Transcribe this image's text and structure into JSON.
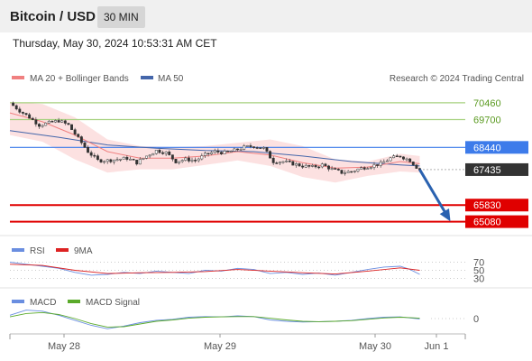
{
  "header": {
    "title": "Bitcoin / USD",
    "timeframe": "30 MIN",
    "datetime": "Thursday, May 30, 2024 10:53:31 AM CET"
  },
  "legend": {
    "ma20": "MA 20 + Bollinger Bands",
    "ma50": "MA 50",
    "source": "Research © 2024 Trading Central",
    "rsi": "RSI",
    "rsi_ma": "9MA",
    "macd": "MACD",
    "macd_signal": "MACD Signal"
  },
  "colors": {
    "ma20": "#f08080",
    "ma50": "#4466aa",
    "bollinger": "#fbd9d9",
    "resistance": "#a6d17f",
    "pivot": "#3d7bea",
    "support": "#e00000",
    "current": "#333333",
    "arrow": "#2a62b0",
    "rsi": "#6a8ee0",
    "rsi_ma": "#dd2222",
    "macd": "#6a8ee0",
    "macd_signal": "#5aaa2a"
  },
  "chart_data": [
    {
      "type": "candlestick",
      "title": "Bitcoin / USD",
      "ylim": [
        64900,
        70700
      ],
      "x_ticks": [
        "May 28",
        "May 29",
        "May 30",
        "Jun 1"
      ],
      "levels": [
        {
          "value": 70460,
          "label": "70460",
          "kind": "resistance"
        },
        {
          "value": 69700,
          "label": "69700",
          "kind": "resistance"
        },
        {
          "value": 68440,
          "label": "68440",
          "kind": "pivot"
        },
        {
          "value": 67435,
          "label": "67435",
          "kind": "current"
        },
        {
          "value": 65830,
          "label": "65830",
          "kind": "support"
        },
        {
          "value": 65080,
          "label": "65080",
          "kind": "support"
        }
      ],
      "close_path": [
        [
          0,
          70450
        ],
        [
          3,
          70100
        ],
        [
          6,
          69800
        ],
        [
          9,
          69450
        ],
        [
          12,
          69550
        ],
        [
          15,
          69650
        ],
        [
          18,
          69450
        ],
        [
          21,
          68850
        ],
        [
          24,
          68250
        ],
        [
          27,
          67850
        ],
        [
          30,
          67850
        ],
        [
          33,
          67900
        ],
        [
          36,
          67950
        ],
        [
          39,
          67750
        ],
        [
          42,
          68050
        ],
        [
          45,
          68300
        ],
        [
          48,
          68200
        ],
        [
          51,
          67800
        ],
        [
          54,
          67900
        ],
        [
          57,
          67850
        ],
        [
          60,
          68100
        ],
        [
          63,
          68250
        ],
        [
          66,
          68200
        ],
        [
          69,
          68300
        ],
        [
          72,
          68450
        ],
        [
          75,
          68500
        ],
        [
          78,
          68400
        ],
        [
          81,
          67800
        ],
        [
          84,
          67800
        ],
        [
          87,
          67700
        ],
        [
          90,
          67600
        ],
        [
          93,
          67550
        ],
        [
          96,
          67650
        ],
        [
          99,
          67450
        ],
        [
          102,
          67300
        ],
        [
          105,
          67350
        ],
        [
          108,
          67500
        ],
        [
          111,
          67600
        ],
        [
          114,
          67700
        ],
        [
          117,
          67950
        ],
        [
          120,
          68050
        ],
        [
          123,
          67850
        ],
        [
          125,
          67550
        ],
        [
          126,
          67435
        ]
      ],
      "ma20": [
        [
          0,
          70000
        ],
        [
          10,
          69600
        ],
        [
          20,
          69000
        ],
        [
          30,
          68250
        ],
        [
          40,
          67950
        ],
        [
          50,
          67950
        ],
        [
          60,
          68050
        ],
        [
          70,
          68250
        ],
        [
          80,
          68100
        ],
        [
          90,
          67750
        ],
        [
          100,
          67500
        ],
        [
          110,
          67550
        ],
        [
          120,
          67800
        ],
        [
          126,
          67700
        ]
      ],
      "ma50": [
        [
          0,
          69200
        ],
        [
          15,
          68900
        ],
        [
          30,
          68550
        ],
        [
          45,
          68400
        ],
        [
          60,
          68300
        ],
        [
          75,
          68250
        ],
        [
          90,
          68050
        ],
        [
          105,
          67800
        ],
        [
          120,
          67650
        ],
        [
          126,
          67600
        ]
      ],
      "bollinger_upper": [
        [
          0,
          70500
        ],
        [
          10,
          70400
        ],
        [
          20,
          69800
        ],
        [
          30,
          68800
        ],
        [
          40,
          68500
        ],
        [
          50,
          68450
        ],
        [
          60,
          68500
        ],
        [
          70,
          68650
        ],
        [
          80,
          68800
        ],
        [
          90,
          68500
        ],
        [
          100,
          67900
        ],
        [
          110,
          67800
        ],
        [
          120,
          68150
        ],
        [
          126,
          68050
        ]
      ],
      "bollinger_lower": [
        [
          0,
          69000
        ],
        [
          10,
          68700
        ],
        [
          20,
          67900
        ],
        [
          30,
          67300
        ],
        [
          40,
          67450
        ],
        [
          50,
          67450
        ],
        [
          60,
          67650
        ],
        [
          70,
          67850
        ],
        [
          80,
          67600
        ],
        [
          90,
          67100
        ],
        [
          100,
          66850
        ],
        [
          110,
          67150
        ],
        [
          120,
          67350
        ],
        [
          126,
          67300
        ]
      ],
      "projection": [
        [
          126,
          67435
        ],
        [
          135,
          65200
        ]
      ]
    },
    {
      "type": "line",
      "name": "RSI",
      "ylim": [
        20,
        80
      ],
      "y_ticks": [
        70,
        50,
        30
      ],
      "series": [
        {
          "name": "RSI",
          "values": [
            [
              0,
              70
            ],
            [
              5,
              65
            ],
            [
              10,
              60
            ],
            [
              15,
              55
            ],
            [
              20,
              45
            ],
            [
              25,
              38
            ],
            [
              30,
              40
            ],
            [
              35,
              45
            ],
            [
              40,
              42
            ],
            [
              45,
              48
            ],
            [
              50,
              45
            ],
            [
              55,
              42
            ],
            [
              60,
              50
            ],
            [
              65,
              48
            ],
            [
              70,
              55
            ],
            [
              75,
              52
            ],
            [
              80,
              42
            ],
            [
              85,
              45
            ],
            [
              90,
              40
            ],
            [
              95,
              43
            ],
            [
              100,
              38
            ],
            [
              105,
              45
            ],
            [
              110,
              52
            ],
            [
              115,
              58
            ],
            [
              120,
              60
            ],
            [
              123,
              52
            ],
            [
              126,
              40
            ]
          ]
        },
        {
          "name": "9MA",
          "values": [
            [
              0,
              65
            ],
            [
              10,
              62
            ],
            [
              20,
              50
            ],
            [
              30,
              42
            ],
            [
              40,
              44
            ],
            [
              50,
              45
            ],
            [
              60,
              47
            ],
            [
              70,
              52
            ],
            [
              80,
              48
            ],
            [
              90,
              44
            ],
            [
              100,
              41
            ],
            [
              110,
              48
            ],
            [
              120,
              56
            ],
            [
              126,
              50
            ]
          ]
        }
      ]
    },
    {
      "type": "line",
      "name": "MACD",
      "ylim": [
        -400,
        400
      ],
      "y_ticks": [
        0
      ],
      "series": [
        {
          "name": "MACD",
          "values": [
            [
              0,
              100
            ],
            [
              5,
              250
            ],
            [
              10,
              220
            ],
            [
              15,
              100
            ],
            [
              20,
              -50
            ],
            [
              25,
              -200
            ],
            [
              30,
              -300
            ],
            [
              35,
              -220
            ],
            [
              40,
              -120
            ],
            [
              45,
              -50
            ],
            [
              50,
              -20
            ],
            [
              55,
              40
            ],
            [
              60,
              60
            ],
            [
              65,
              50
            ],
            [
              70,
              80
            ],
            [
              75,
              60
            ],
            [
              80,
              -40
            ],
            [
              85,
              -80
            ],
            [
              90,
              -100
            ],
            [
              95,
              -90
            ],
            [
              100,
              -80
            ],
            [
              105,
              -50
            ],
            [
              110,
              0
            ],
            [
              115,
              40
            ],
            [
              120,
              50
            ],
            [
              123,
              20
            ],
            [
              126,
              -10
            ]
          ]
        },
        {
          "name": "MACD Signal",
          "values": [
            [
              0,
              50
            ],
            [
              5,
              150
            ],
            [
              10,
              180
            ],
            [
              15,
              120
            ],
            [
              20,
              0
            ],
            [
              25,
              -150
            ],
            [
              30,
              -250
            ],
            [
              35,
              -240
            ],
            [
              40,
              -160
            ],
            [
              45,
              -80
            ],
            [
              50,
              -40
            ],
            [
              55,
              10
            ],
            [
              60,
              40
            ],
            [
              65,
              50
            ],
            [
              70,
              60
            ],
            [
              75,
              60
            ],
            [
              80,
              10
            ],
            [
              85,
              -40
            ],
            [
              90,
              -80
            ],
            [
              95,
              -90
            ],
            [
              100,
              -80
            ],
            [
              105,
              -60
            ],
            [
              110,
              -20
            ],
            [
              115,
              20
            ],
            [
              120,
              40
            ],
            [
              123,
              30
            ],
            [
              126,
              10
            ]
          ]
        }
      ]
    }
  ]
}
